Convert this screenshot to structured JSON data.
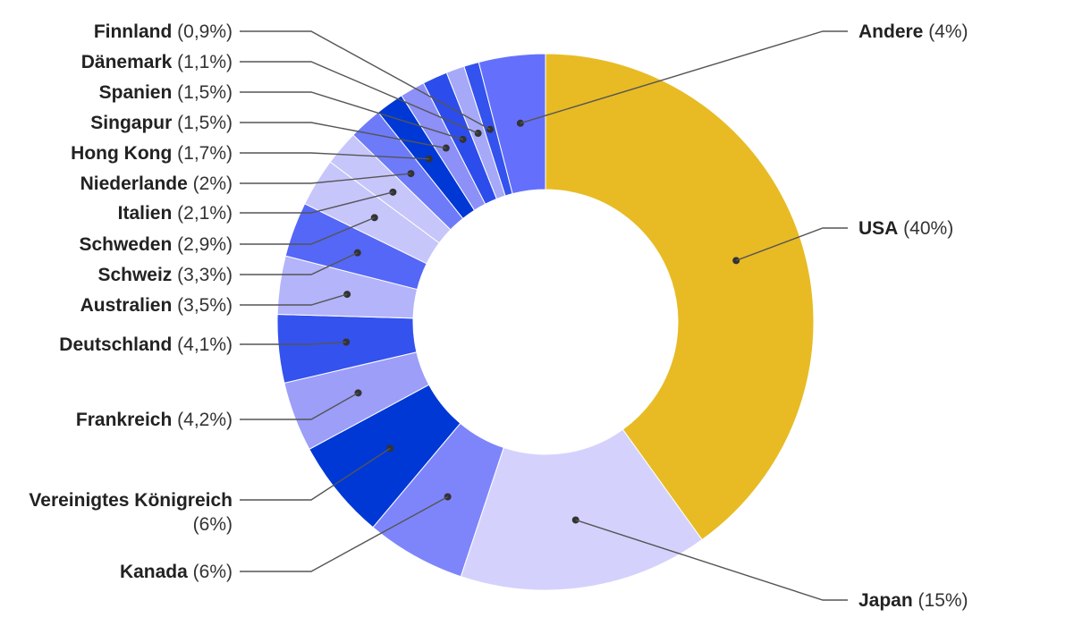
{
  "chart_data": {
    "type": "pie",
    "variant": "donut",
    "title": "",
    "slices": [
      {
        "name": "USA",
        "value": 40,
        "pct_label": "(40%)",
        "color": "#E8BB24"
      },
      {
        "name": "Japan",
        "value": 15,
        "pct_label": "(15%)",
        "color": "#D4D2FC"
      },
      {
        "name": "Kanada",
        "value": 6,
        "pct_label": "(6%)",
        "color": "#7E85FB"
      },
      {
        "name": "Vereinigtes Königreich",
        "value": 6,
        "pct_label": "(6%)",
        "color": "#0038D6"
      },
      {
        "name": "Frankreich",
        "value": 4.2,
        "pct_label": "(4,2%)",
        "color": "#9C9EF8"
      },
      {
        "name": "Deutschland",
        "value": 4.1,
        "pct_label": "(4,1%)",
        "color": "#3452EE"
      },
      {
        "name": "Australien",
        "value": 3.5,
        "pct_label": "(3,5%)",
        "color": "#B4B4FA"
      },
      {
        "name": "Schweiz",
        "value": 3.3,
        "pct_label": "(3,3%)",
        "color": "#5567F6"
      },
      {
        "name": "Schweden",
        "value": 2.9,
        "pct_label": "(2,9%)",
        "color": "#C7C6FB"
      },
      {
        "name": "Italien",
        "value": 2.1,
        "pct_label": "(2,1%)",
        "color": "#C7C6FB"
      },
      {
        "name": "Niederlande",
        "value": 2,
        "pct_label": "(2%)",
        "color": "#6E7BF8"
      },
      {
        "name": "Hong Kong",
        "value": 1.7,
        "pct_label": "(1,7%)",
        "color": "#0038D6"
      },
      {
        "name": "Singapur",
        "value": 1.5,
        "pct_label": "(1,5%)",
        "color": "#8C90F7"
      },
      {
        "name": "Spanien",
        "value": 1.5,
        "pct_label": "(1,5%)",
        "color": "#2C4DEB"
      },
      {
        "name": "Dänemark",
        "value": 1.1,
        "pct_label": "(1,1%)",
        "color": "#A6A8F8"
      },
      {
        "name": "Finnland",
        "value": 0.9,
        "pct_label": "(0,9%)",
        "color": "#3452EE"
      },
      {
        "name": "Andere",
        "value": 4,
        "pct_label": "(4%)",
        "color": "#6470FB"
      }
    ],
    "legend": "none"
  }
}
